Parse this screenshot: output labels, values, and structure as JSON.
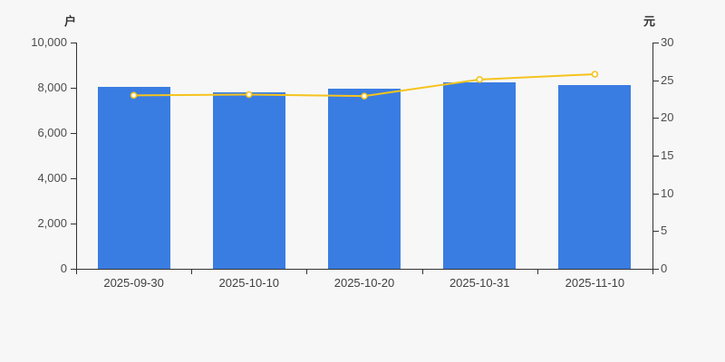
{
  "page": {
    "background": "#f7f7f7"
  },
  "chart_data": {
    "type": "bar",
    "subtype": "bar-plus-line-dual-axis",
    "categories": [
      "2025-09-30",
      "2025-10-10",
      "2025-10-20",
      "2025-10-31",
      "2025-11-10"
    ],
    "series": [
      {
        "id": "bar_series",
        "type": "bar",
        "yaxis": "left",
        "unit": "户",
        "color": "#3a7de2",
        "values": [
          8050,
          7800,
          7950,
          8250,
          8130
        ]
      },
      {
        "id": "line_series",
        "type": "line",
        "yaxis": "right",
        "unit": "元",
        "color": "#f5c31d",
        "marker": "hollow-circle",
        "marker_fill": "#ffffff",
        "values": [
          23.0,
          23.1,
          22.9,
          25.1,
          25.8
        ]
      }
    ],
    "left_axis": {
      "unit": "户",
      "min": 0,
      "max": 10000,
      "tick_step": 2000,
      "tick_labels": [
        "0",
        "2,000",
        "4,000",
        "6,000",
        "8,000",
        "10,000"
      ]
    },
    "right_axis": {
      "unit": "元",
      "min": 0,
      "max": 30,
      "tick_step": 5,
      "tick_labels": [
        "0",
        "5",
        "10",
        "15",
        "20",
        "25",
        "30"
      ]
    },
    "grid": false,
    "legend": false,
    "axis_color": "#333333",
    "tick_text_color": "#4d4d4d"
  }
}
